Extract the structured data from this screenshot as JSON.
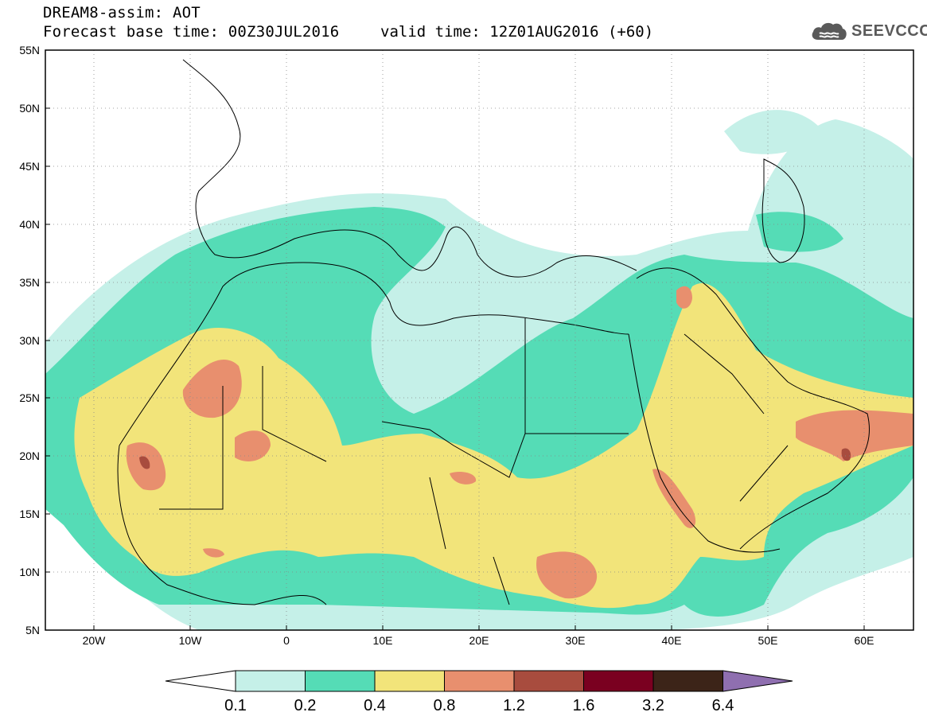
{
  "header": {
    "title_line1": "DREAM8-assim: AOT",
    "title_line2": "Forecast base time: 00Z30JUL2016",
    "valid_time": "valid time: 12Z01AUG2016 (+60)",
    "logo_text": "SEEVCCC"
  },
  "map": {
    "lat_labels": [
      "55N",
      "50N",
      "45N",
      "40N",
      "35N",
      "30N",
      "25N",
      "20N",
      "15N",
      "10N",
      "5N"
    ],
    "lon_labels": [
      "20W",
      "10W",
      "0",
      "10E",
      "20E",
      "30E",
      "40E",
      "50E",
      "60E"
    ],
    "lat_range": [
      5,
      55
    ],
    "lon_range": [
      -25,
      65
    ]
  },
  "colorbar": {
    "levels": [
      "0.1",
      "0.2",
      "0.4",
      "0.8",
      "1.2",
      "1.6",
      "3.2",
      "6.4"
    ],
    "colors": [
      "#ffffff",
      "#c5f0e8",
      "#55dcb6",
      "#f2e47a",
      "#e88f6e",
      "#a84c3e",
      "#7a0020",
      "#3c2418",
      "#8f6fb0"
    ]
  }
}
